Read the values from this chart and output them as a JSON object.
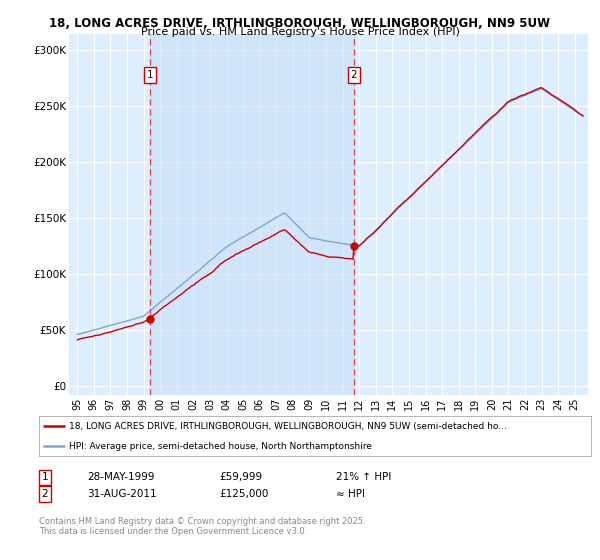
{
  "title_line1": "18, LONG ACRES DRIVE, IRTHLINGBOROUGH, WELLINGBOROUGH, NN9 5UW",
  "title_line2": "Price paid vs. HM Land Registry's House Price Index (HPI)",
  "background_color": "#ffffff",
  "plot_bg_color": "#ddeeff",
  "shade_color": "#c8dff5",
  "grid_color": "#ffffff",
  "marker1_date": "28-MAY-1999",
  "marker1_price": 59999,
  "marker1_year": 1999.41,
  "marker1_label": "21% ↑ HPI",
  "marker2_date": "31-AUG-2011",
  "marker2_price": 125000,
  "marker2_year": 2011.66,
  "marker2_label": "≈ HPI",
  "legend_line1": "18, LONG ACRES DRIVE, IRTHLINGBOROUGH, WELLINGBOROUGH, NN9 5UW (semi-detached ho...",
  "legend_line2": "HPI: Average price, semi-detached house, North Northamptonshire",
  "footer_line1": "Contains HM Land Registry data © Crown copyright and database right 2025.",
  "footer_line2": "This data is licensed under the Open Government Licence v3.0.",
  "yticks": [
    0,
    50000,
    100000,
    150000,
    200000,
    250000,
    300000
  ],
  "ytick_labels": [
    "£0",
    "£50K",
    "£100K",
    "£150K",
    "£200K",
    "£250K",
    "£300K"
  ],
  "ylim": [
    -8000,
    315000
  ],
  "xlim": [
    1994.5,
    2025.8
  ],
  "red_color": "#cc0000",
  "blue_color": "#7aa8d0",
  "dashed_color": "#dd4444"
}
